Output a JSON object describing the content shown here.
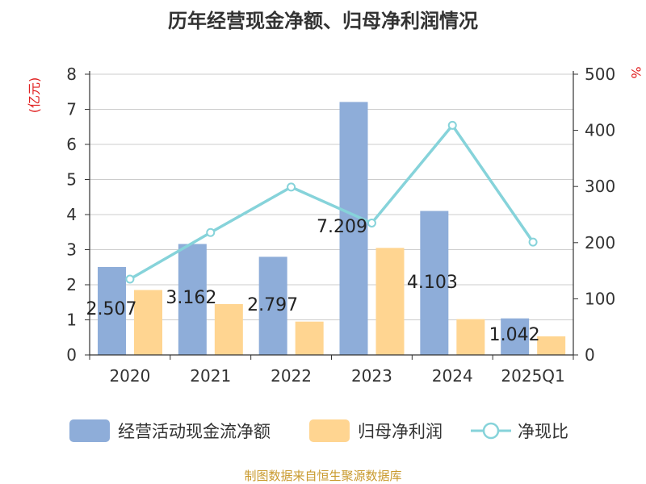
{
  "title": "历年经营现金净额、归母净利润情况",
  "source": "制图数据来自恒生聚源数据库",
  "colors": {
    "operating_cash_flow": "#8eadd9",
    "net_profit": "#ffd591",
    "ratio_line": "#86d3da",
    "axis_label": "#e02020",
    "text": "#333333",
    "grid": "#cccccc"
  },
  "chart_data": {
    "type": "bar",
    "title": "历年经营现金净额、归母净利润情况",
    "categories": [
      "2020",
      "2021",
      "2022",
      "2023",
      "2024",
      "2025Q1"
    ],
    "left_axis": {
      "label": "(亿元)",
      "min": 0,
      "max": 8,
      "ticks": [
        "0",
        "1",
        "2",
        "3",
        "4",
        "5",
        "6",
        "7",
        "8"
      ]
    },
    "right_axis": {
      "label": "%",
      "min": 0,
      "max": 500,
      "ticks": [
        "0",
        "100",
        "200",
        "300",
        "400",
        "500"
      ]
    },
    "grid": true,
    "legend_position": "bottom",
    "series": [
      {
        "name": "经营活动现金流净额",
        "type": "bar",
        "axis": "left",
        "values": [
          2.507,
          3.162,
          2.797,
          7.209,
          4.103,
          1.042
        ],
        "labels": [
          "2.507",
          "3.162",
          "2.797",
          "7.209",
          "4.103",
          "1.042"
        ]
      },
      {
        "name": "归母净利润",
        "type": "bar",
        "axis": "left",
        "values": [
          1.85,
          1.45,
          0.95,
          3.05,
          1.02,
          0.53
        ]
      },
      {
        "name": "净现比",
        "type": "line",
        "axis": "right",
        "values": [
          135,
          218,
          299,
          235,
          409,
          201
        ]
      }
    ]
  }
}
